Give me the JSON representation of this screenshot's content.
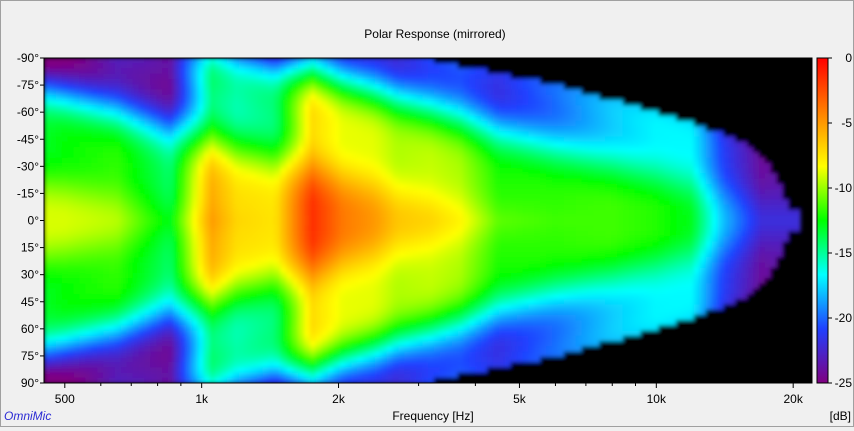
{
  "brand": "OmniMic",
  "chart_data": {
    "type": "heatmap",
    "title": "Polar Response (mirrored)",
    "xlabel": "Frequency [Hz]",
    "ylabel": "",
    "x_scale": "log",
    "xlim": [
      450,
      22000
    ],
    "ylim": [
      -90,
      90
    ],
    "x_ticks": [
      {
        "value": 500,
        "label": "500"
      },
      {
        "value": 1000,
        "label": "1k"
      },
      {
        "value": 2000,
        "label": "2k"
      },
      {
        "value": 5000,
        "label": "5k"
      },
      {
        "value": 10000,
        "label": "10k"
      },
      {
        "value": 20000,
        "label": "20k"
      }
    ],
    "y_ticks": [
      {
        "value": -90,
        "label": "-90°"
      },
      {
        "value": -75,
        "label": "-75°"
      },
      {
        "value": -60,
        "label": "-60°"
      },
      {
        "value": -45,
        "label": "-45°"
      },
      {
        "value": -30,
        "label": "-30°"
      },
      {
        "value": -15,
        "label": "-15°"
      },
      {
        "value": 0,
        "label": "0°"
      },
      {
        "value": 15,
        "label": "15°"
      },
      {
        "value": 30,
        "label": "30°"
      },
      {
        "value": 45,
        "label": "45°"
      },
      {
        "value": 60,
        "label": "60°"
      },
      {
        "value": 75,
        "label": "75°"
      },
      {
        "value": 90,
        "label": "90°"
      }
    ],
    "colorbar": {
      "unit": "[dB]",
      "range": [
        -25,
        0
      ],
      "ticks": [
        {
          "value": 0,
          "label": "0"
        },
        {
          "value": -5,
          "label": "-5"
        },
        {
          "value": -10,
          "label": "-10"
        },
        {
          "value": -15,
          "label": "-15"
        },
        {
          "value": -20,
          "label": "-20"
        },
        {
          "value": -25,
          "label": "-25"
        }
      ],
      "colors": [
        "#800080",
        "#2040ff",
        "#00ffff",
        "#00ff00",
        "#ffff00",
        "#ff8000",
        "#ff0000"
      ]
    },
    "levels_db_on_axis": [
      {
        "f": 500,
        "db": -9
      },
      {
        "f": 650,
        "db": -9.5
      },
      {
        "f": 850,
        "db": -13
      },
      {
        "f": 1050,
        "db": -5
      },
      {
        "f": 1200,
        "db": -7
      },
      {
        "f": 1450,
        "db": -7.5
      },
      {
        "f": 1750,
        "db": -1.5
      },
      {
        "f": 2050,
        "db": -4
      },
      {
        "f": 2400,
        "db": -5
      },
      {
        "f": 2700,
        "db": -6.5
      },
      {
        "f": 3200,
        "db": -7
      },
      {
        "f": 3700,
        "db": -8
      },
      {
        "f": 4500,
        "db": -11
      },
      {
        "f": 6000,
        "db": -11.5
      },
      {
        "f": 8000,
        "db": -11.5
      },
      {
        "f": 10000,
        "db": -12
      },
      {
        "f": 12000,
        "db": -13
      },
      {
        "f": 14000,
        "db": -18
      },
      {
        "f": 17000,
        "db": -22
      }
    ],
    "coverage_edge_deg": [
      {
        "f": 450,
        "deg": 90
      },
      {
        "f": 3000,
        "deg": 90
      },
      {
        "f": 4000,
        "deg": 84
      },
      {
        "f": 6000,
        "deg": 75
      },
      {
        "f": 9000,
        "deg": 63
      },
      {
        "f": 12000,
        "deg": 54
      },
      {
        "f": 15000,
        "deg": 45
      },
      {
        "f": 17500,
        "deg": 34
      },
      {
        "f": 19000,
        "deg": 17
      },
      {
        "f": 19500,
        "deg": 5
      }
    ]
  }
}
